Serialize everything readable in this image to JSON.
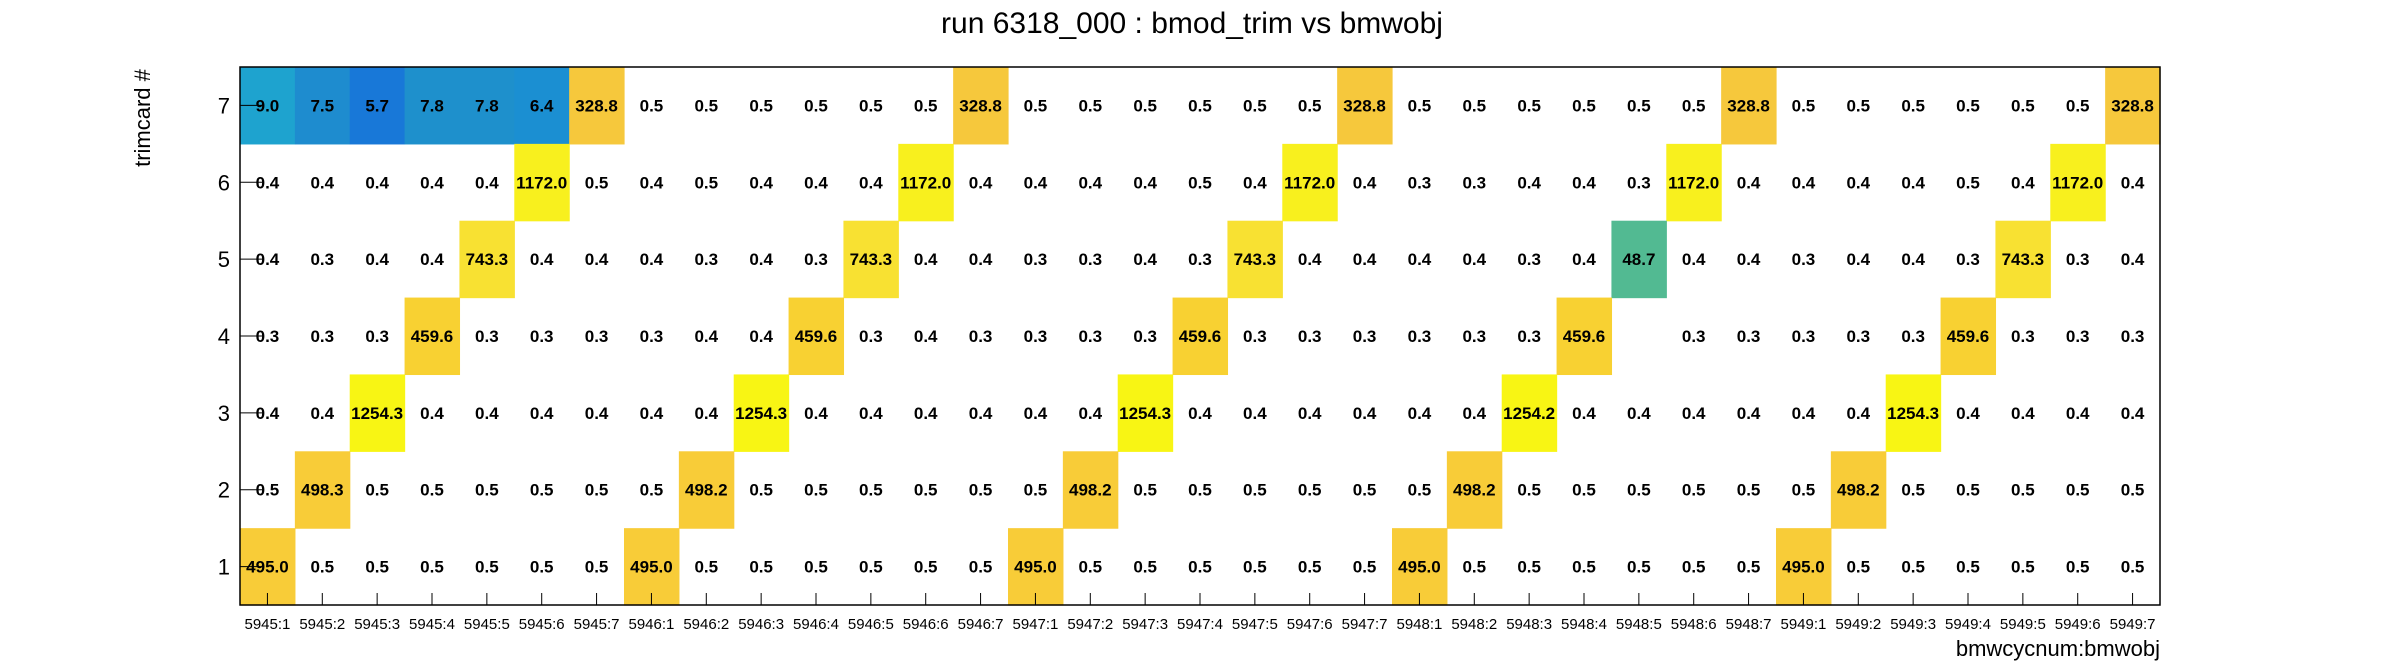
{
  "chart_data": {
    "type": "heatmap",
    "title": "run 6318_000 : bmod_trim vs bmwobj",
    "xlabel": "bmwcycnum:bmwobj",
    "ylabel": "trimcard #",
    "x_categories": [
      "5945:1",
      "5945:2",
      "5945:3",
      "5945:4",
      "5945:5",
      "5945:6",
      "5945:7",
      "5946:1",
      "5946:2",
      "5946:3",
      "5946:4",
      "5946:5",
      "5946:6",
      "5946:7",
      "5947:1",
      "5947:2",
      "5947:3",
      "5947:4",
      "5947:5",
      "5947:6",
      "5947:7",
      "5948:1",
      "5948:2",
      "5948:3",
      "5948:4",
      "5948:5",
      "5948:6",
      "5948:7",
      "5949:1",
      "5949:2",
      "5949:3",
      "5949:4",
      "5949:5",
      "5949:6",
      "5949:7"
    ],
    "y_categories": [
      "1",
      "2",
      "3",
      "4",
      "5",
      "6",
      "7"
    ],
    "rows": [
      {
        "y": "7",
        "values": [
          "9.0",
          "7.5",
          "5.7",
          "7.8",
          "7.8",
          "6.4",
          "328.8",
          "0.5",
          "0.5",
          "0.5",
          "0.5",
          "0.5",
          "0.5",
          "328.8",
          "0.5",
          "0.5",
          "0.5",
          "0.5",
          "0.5",
          "0.5",
          "328.8",
          "0.5",
          "0.5",
          "0.5",
          "0.5",
          "0.5",
          "0.5",
          "328.8",
          "0.5",
          "0.5",
          "0.5",
          "0.5",
          "0.5",
          "0.5",
          "328.8"
        ]
      },
      {
        "y": "6",
        "values": [
          "0.4",
          "0.4",
          "0.4",
          "0.4",
          "0.4",
          "1172.0",
          "0.5",
          "0.4",
          "0.5",
          "0.4",
          "0.4",
          "0.4",
          "1172.0",
          "0.4",
          "0.4",
          "0.4",
          "0.4",
          "0.5",
          "0.4",
          "1172.0",
          "0.4",
          "0.3",
          "0.3",
          "0.4",
          "0.4",
          "0.3",
          "1172.0",
          "0.4",
          "0.4",
          "0.4",
          "0.4",
          "0.5",
          "0.4",
          "1172.0",
          "0.4"
        ]
      },
      {
        "y": "5",
        "values": [
          "0.4",
          "0.3",
          "0.4",
          "0.4",
          "743.3",
          "0.4",
          "0.4",
          "0.4",
          "0.3",
          "0.4",
          "0.3",
          "743.3",
          "0.4",
          "0.4",
          "0.3",
          "0.3",
          "0.4",
          "0.3",
          "743.3",
          "0.4",
          "0.4",
          "0.4",
          "0.4",
          "0.3",
          "0.4",
          "48.7",
          "0.4",
          "0.4",
          "0.3",
          "0.4",
          "0.4",
          "0.3",
          "743.3",
          "0.3",
          "0.4"
        ]
      },
      {
        "y": "4",
        "values": [
          "0.3",
          "0.3",
          "0.3",
          "459.6",
          "0.3",
          "0.3",
          "0.3",
          "0.3",
          "0.4",
          "0.4",
          "459.6",
          "0.3",
          "0.4",
          "0.3",
          "0.3",
          "0.3",
          "0.3",
          "459.6",
          "0.3",
          "0.3",
          "0.3",
          "0.3",
          "0.3",
          "0.3",
          "459.6",
          "",
          "0.3",
          "0.3",
          "0.3",
          "0.3",
          "0.3",
          "459.6",
          "0.3",
          "0.3",
          "0.3"
        ]
      },
      {
        "y": "3",
        "values": [
          "0.4",
          "0.4",
          "1254.3",
          "0.4",
          "0.4",
          "0.4",
          "0.4",
          "0.4",
          "0.4",
          "1254.3",
          "0.4",
          "0.4",
          "0.4",
          "0.4",
          "0.4",
          "0.4",
          "1254.3",
          "0.4",
          "0.4",
          "0.4",
          "0.4",
          "0.4",
          "0.4",
          "1254.2",
          "0.4",
          "0.4",
          "0.4",
          "0.4",
          "0.4",
          "0.4",
          "1254.3",
          "0.4",
          "0.4",
          "0.4",
          "0.4"
        ]
      },
      {
        "y": "2",
        "values": [
          "0.5",
          "498.3",
          "0.5",
          "0.5",
          "0.5",
          "0.5",
          "0.5",
          "0.5",
          "498.2",
          "0.5",
          "0.5",
          "0.5",
          "0.5",
          "0.5",
          "0.5",
          "498.2",
          "0.5",
          "0.5",
          "0.5",
          "0.5",
          "0.5",
          "0.5",
          "498.2",
          "0.5",
          "0.5",
          "0.5",
          "0.5",
          "0.5",
          "0.5",
          "498.2",
          "0.5",
          "0.5",
          "0.5",
          "0.5",
          "0.5"
        ]
      },
      {
        "y": "1",
        "values": [
          "495.0",
          "0.5",
          "0.5",
          "0.5",
          "0.5",
          "0.5",
          "0.5",
          "495.0",
          "0.5",
          "0.5",
          "0.5",
          "0.5",
          "0.5",
          "0.5",
          "495.0",
          "0.5",
          "0.5",
          "0.5",
          "0.5",
          "0.5",
          "0.5",
          "495.0",
          "0.5",
          "0.5",
          "0.5",
          "0.5",
          "0.5",
          "0.5",
          "495.0",
          "0.5",
          "0.5",
          "0.5",
          "0.5",
          "0.5",
          "0.5"
        ]
      }
    ],
    "colorscale": {
      "low_values_shown": "0.3-0.5 (white / not colored)",
      "stops": [
        {
          "value": 5.7,
          "color": "#1878d8"
        },
        {
          "value": 6.4,
          "color": "#1b8fd2"
        },
        {
          "value": 7.5,
          "color": "#1e8ccf"
        },
        {
          "value": 7.8,
          "color": "#1e90cc"
        },
        {
          "value": 9.0,
          "color": "#1ea3cf"
        },
        {
          "value": 48.7,
          "color": "#52ba92"
        },
        {
          "value": 328.8,
          "color": "#f6c83c"
        },
        {
          "value": 459.6,
          "color": "#f8d132"
        },
        {
          "value": 495.0,
          "color": "#f8cc38"
        },
        {
          "value": 743.3,
          "color": "#f8e132"
        },
        {
          "value": 1172.0,
          "color": "#f8f01e"
        },
        {
          "value": 1254.3,
          "color": "#f8f514"
        }
      ]
    },
    "grid": false,
    "legend": "none"
  }
}
